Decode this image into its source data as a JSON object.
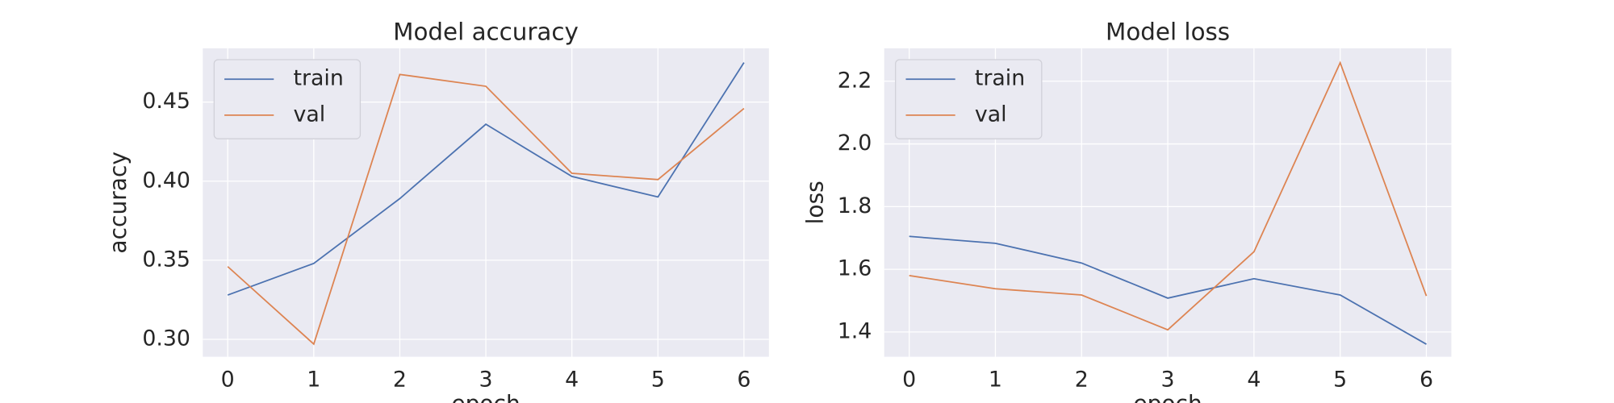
{
  "chart_data": [
    {
      "type": "line",
      "title": "Model accuracy",
      "y_label": "accuracy",
      "x_label": "epoch",
      "x": [
        0,
        1,
        2,
        3,
        4,
        5,
        6
      ],
      "series": [
        {
          "name": "train",
          "color": "#4c72b0",
          "values": [
            0.328,
            0.348,
            0.389,
            0.436,
            0.403,
            0.39,
            0.475
          ]
        },
        {
          "name": "val",
          "color": "#dd8452",
          "values": [
            0.346,
            0.297,
            0.4675,
            0.46,
            0.405,
            0.401,
            0.446
          ]
        }
      ],
      "xlim": [
        -0.29,
        6.29
      ],
      "ylim": [
        0.289,
        0.484
      ],
      "xticks": [
        0,
        1,
        2,
        3,
        4,
        5,
        6
      ],
      "yticks": [
        {
          "value": 0.3,
          "label": "0.30"
        },
        {
          "value": 0.35,
          "label": "0.35"
        },
        {
          "value": 0.4,
          "label": "0.40"
        },
        {
          "value": 0.45,
          "label": "0.45"
        }
      ],
      "grid": true,
      "legend": "upper-left"
    },
    {
      "type": "line",
      "title": "Model loss",
      "y_label": "loss",
      "x_label": "epoch",
      "x": [
        0,
        1,
        2,
        3,
        4,
        5,
        6
      ],
      "series": [
        {
          "name": "train",
          "color": "#4c72b0",
          "values": [
            1.705,
            1.683,
            1.62,
            1.508,
            1.57,
            1.518,
            1.361
          ]
        },
        {
          "name": "val",
          "color": "#dd8452",
          "values": [
            1.58,
            1.538,
            1.518,
            1.407,
            1.656,
            2.259,
            1.515
          ]
        }
      ],
      "xlim": [
        -0.29,
        6.29
      ],
      "ylim": [
        1.321,
        2.305
      ],
      "xticks": [
        0,
        1,
        2,
        3,
        4,
        5,
        6
      ],
      "yticks": [
        1.4,
        1.6,
        1.8,
        {
          "value": 2.0,
          "label": "2.0"
        },
        2.2
      ],
      "grid": true,
      "legend": "upper-left"
    }
  ]
}
